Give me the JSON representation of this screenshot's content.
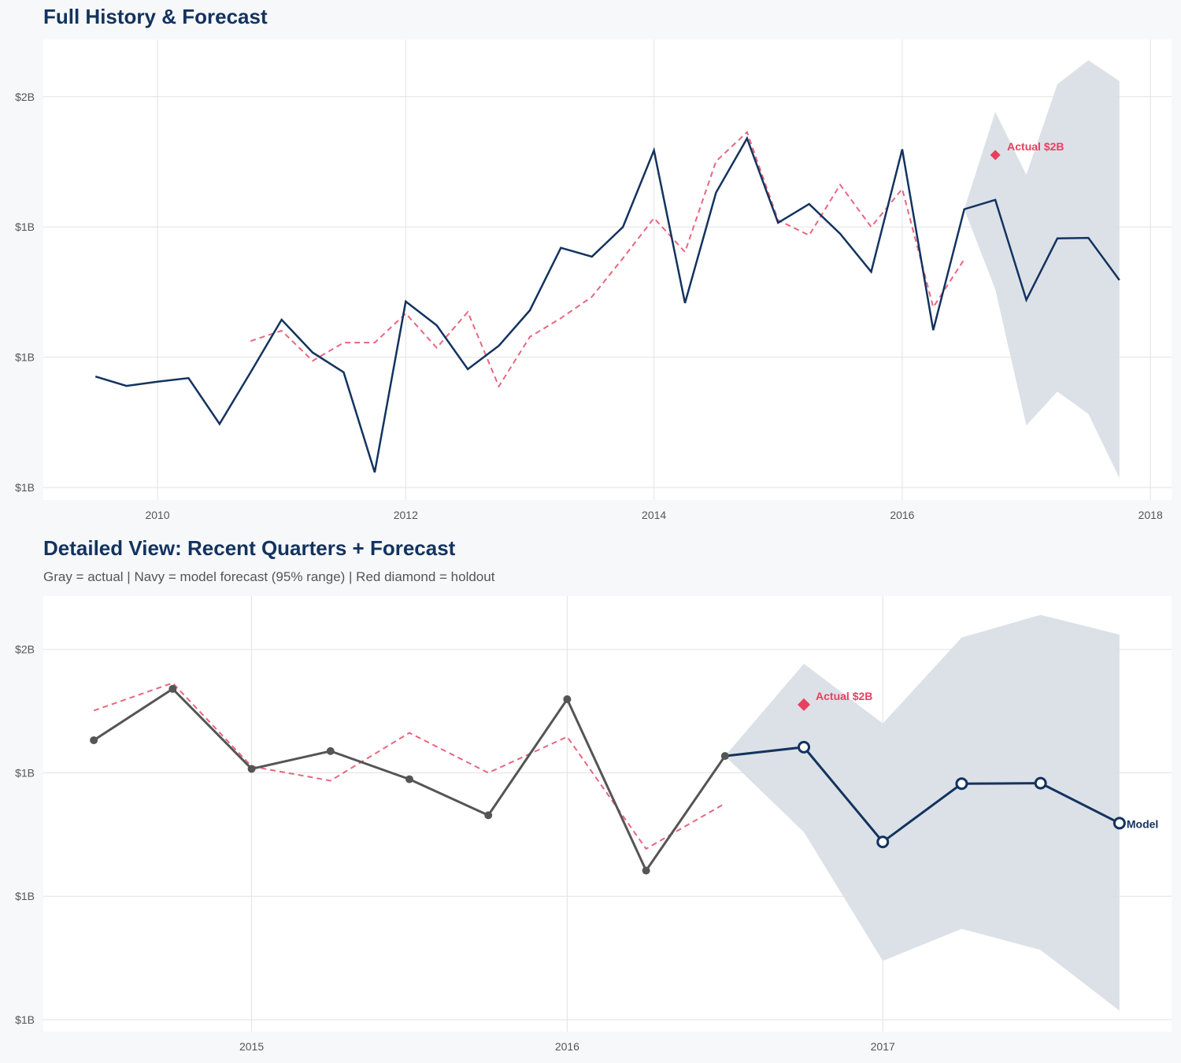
{
  "colors": {
    "actual_top": "#13335f",
    "actual_detail": "#555555",
    "forecast": "#13335f",
    "moving": "#e8667f",
    "band": "#dadfe6",
    "holdout": "#e8405f",
    "title": "#13335f"
  },
  "chart_data": [
    {
      "type": "line",
      "title": "Full History & Forecast",
      "xlim": [
        2009.08,
        2018.17
      ],
      "ylim": [
        0.726,
        1.61
      ],
      "x_ticks": [
        2010,
        2012,
        2014,
        2016,
        2018
      ],
      "x_tick_labels": [
        "2010",
        "2012",
        "2014",
        "2016",
        "2018"
      ],
      "y_ticks": [
        0.75,
        1.0,
        1.25,
        1.5
      ],
      "y_tick_labels": [
        "$1B",
        "$1B",
        "$1B",
        "$2B"
      ],
      "grid": true,
      "actual": {
        "x_start": 2009.5,
        "step": 0.25,
        "values": [
          0.963,
          0.945,
          0.953,
          0.96,
          0.872,
          0.971,
          1.072,
          1.009,
          0.971,
          0.779,
          1.107,
          1.061,
          0.977,
          1.022,
          1.09,
          1.21,
          1.193,
          1.25,
          1.397,
          1.104,
          1.316,
          1.42,
          1.258,
          1.294,
          1.237,
          1.164,
          1.399,
          1.052,
          1.284
        ]
      },
      "moving": {
        "x_start": 2010.75,
        "step": 0.25,
        "values": [
          1.031,
          1.051,
          0.993,
          1.028,
          1.028,
          1.084,
          1.018,
          1.087,
          0.944,
          1.039,
          1.075,
          1.116,
          1.19,
          1.267,
          1.202,
          1.376,
          1.432,
          1.263,
          1.234,
          1.331,
          1.25,
          1.323,
          1.096,
          1.188
        ]
      },
      "forecast": {
        "x_start": 2016.5,
        "step": 0.25,
        "values": [
          1.284,
          1.302,
          1.11,
          1.228,
          1.229,
          1.148
        ]
      },
      "band": {
        "x_start": 2016.5,
        "step": 0.25,
        "upper": [
          1.284,
          1.471,
          1.35,
          1.524,
          1.57,
          1.53
        ],
        "lower": [
          1.284,
          1.13,
          0.869,
          0.934,
          0.891,
          0.768
        ]
      },
      "holdout": {
        "x": 2016.75,
        "y": 1.388,
        "label": "Actual $2B"
      }
    },
    {
      "type": "line",
      "title": "Detailed View: Recent Quarters + Forecast",
      "subtitle": "Gray = actual  |  Navy = model forecast (95% range)  |  Red diamond = holdout",
      "xlim": [
        2014.34,
        2017.915
      ],
      "ylim": [
        0.726,
        1.608
      ],
      "x_ticks": [
        2015,
        2016,
        2017
      ],
      "x_tick_labels": [
        "2015",
        "2016",
        "2017"
      ],
      "y_ticks": [
        0.75,
        1.0,
        1.25,
        1.5
      ],
      "y_tick_labels": [
        "$1B",
        "$1B",
        "$1B",
        "$2B"
      ],
      "grid": true,
      "actual": {
        "x_start": 2014.5,
        "step": 0.25,
        "values": [
          1.316,
          1.42,
          1.258,
          1.294,
          1.237,
          1.164,
          1.399,
          1.052,
          1.284
        ]
      },
      "moving": {
        "x_start": 2014.5,
        "step": 0.25,
        "values": [
          1.376,
          1.432,
          1.263,
          1.234,
          1.331,
          1.25,
          1.323,
          1.096,
          1.188
        ]
      },
      "forecast": {
        "x_start": 2016.5,
        "step": 0.25,
        "values": [
          1.284,
          1.302,
          1.11,
          1.228,
          1.229,
          1.148
        ]
      },
      "band": {
        "x_start": 2016.5,
        "step": 0.25,
        "upper": [
          1.284,
          1.471,
          1.35,
          1.524,
          1.57,
          1.53
        ],
        "lower": [
          1.284,
          1.13,
          0.869,
          0.934,
          0.891,
          0.768
        ]
      },
      "holdout": {
        "x": 2016.75,
        "y": 1.388,
        "label": "Actual $2B"
      },
      "end_label": "Model"
    }
  ]
}
